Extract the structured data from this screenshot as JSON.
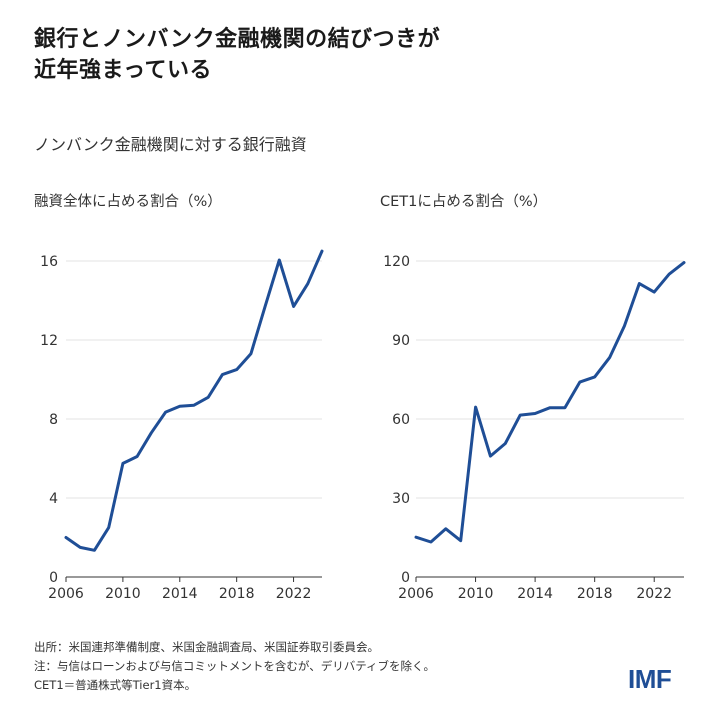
{
  "title_lines": [
    "銀行とノンバンク金融機関の結びつきが",
    "近年強まっている"
  ],
  "subtitle": "ノンバンク金融機関に対する銀行融資",
  "footnotes": [
    "出所：米国連邦準備制度、米国金融調査局、米国証券取引委員会。",
    "注：与信はローンおよび与信コミットメントを含むが、デリバティブを除く。",
    "CET1＝普通株式等Tier1資本。"
  ],
  "logo": "IMF",
  "colors": {
    "line": "#1f4e96",
    "grid": "#e3e3e3",
    "axis": "#333333"
  },
  "chart_data": [
    {
      "type": "line",
      "title": "融資全体に占める割合（%）",
      "x": [
        2006,
        2007,
        2008,
        2009,
        2010,
        2011,
        2012,
        2013,
        2014,
        2015,
        2016,
        2017,
        2018,
        2019,
        2020,
        2021,
        2022,
        2023,
        2024
      ],
      "values": [
        2.0,
        1.5,
        1.35,
        2.5,
        5.75,
        6.1,
        7.3,
        8.35,
        8.65,
        8.7,
        9.1,
        10.25,
        10.5,
        11.3,
        13.7,
        16.05,
        13.7,
        14.85,
        16.5
      ],
      "xticks": [
        "2006",
        "2010",
        "2014",
        "2018",
        "2022"
      ],
      "yticks": [
        "0",
        "4",
        "8",
        "12",
        "16"
      ],
      "xlim": [
        2006,
        2024
      ],
      "ylim": [
        0,
        16
      ],
      "grid": "horizontal"
    },
    {
      "type": "line",
      "title": "CET1に占める割合（%）",
      "x": [
        2006,
        2007,
        2008,
        2009,
        2010,
        2011,
        2012,
        2013,
        2014,
        2015,
        2016,
        2017,
        2018,
        2019,
        2020,
        2021,
        2022,
        2023,
        2024
      ],
      "values": [
        15.1,
        13.3,
        18.3,
        13.8,
        64.5,
        45.9,
        50.7,
        61.5,
        62.1,
        64.3,
        64.3,
        74.0,
        76.0,
        83.3,
        95.3,
        111.4,
        108.2,
        115.0,
        119.4
      ],
      "xticks": [
        "2006",
        "2010",
        "2014",
        "2018",
        "2022"
      ],
      "yticks": [
        "0",
        "30",
        "60",
        "90",
        "120"
      ],
      "xlim": [
        2006,
        2024
      ],
      "ylim": [
        0,
        120
      ],
      "grid": "horizontal"
    }
  ]
}
